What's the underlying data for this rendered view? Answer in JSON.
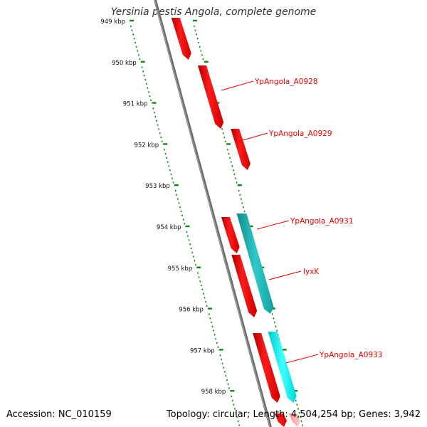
{
  "title": "Yersinia pestis Angola, complete genome",
  "ruler_labels": [
    "949 kbp",
    "950 kbp",
    "951 kbp",
    "952 kbp",
    "953 kbp",
    "954 kbp",
    "955 kbp",
    "956 kbp",
    "957 kbp",
    "958 kbp"
  ],
  "genes": [
    {
      "label": "YpAngola_A0928"
    },
    {
      "label": "YpAngola_A0929"
    },
    {
      "label": "YpAngola_A0931"
    },
    {
      "label": "lyxK"
    },
    {
      "label": "YpAngola_A0933"
    }
  ],
  "footer": {
    "accession": "Accession: NC_010159",
    "topology": "Topology: circular; Length: 4,504,254 bp; Genes: 3,942"
  },
  "colors": {
    "backbone": "#808080",
    "ruler_ticks": "#118811",
    "gene_red": "#ff0000",
    "gene_teal": "#20c0c0",
    "gene_cyan": "#00e8e8",
    "label": "#ee0000"
  }
}
